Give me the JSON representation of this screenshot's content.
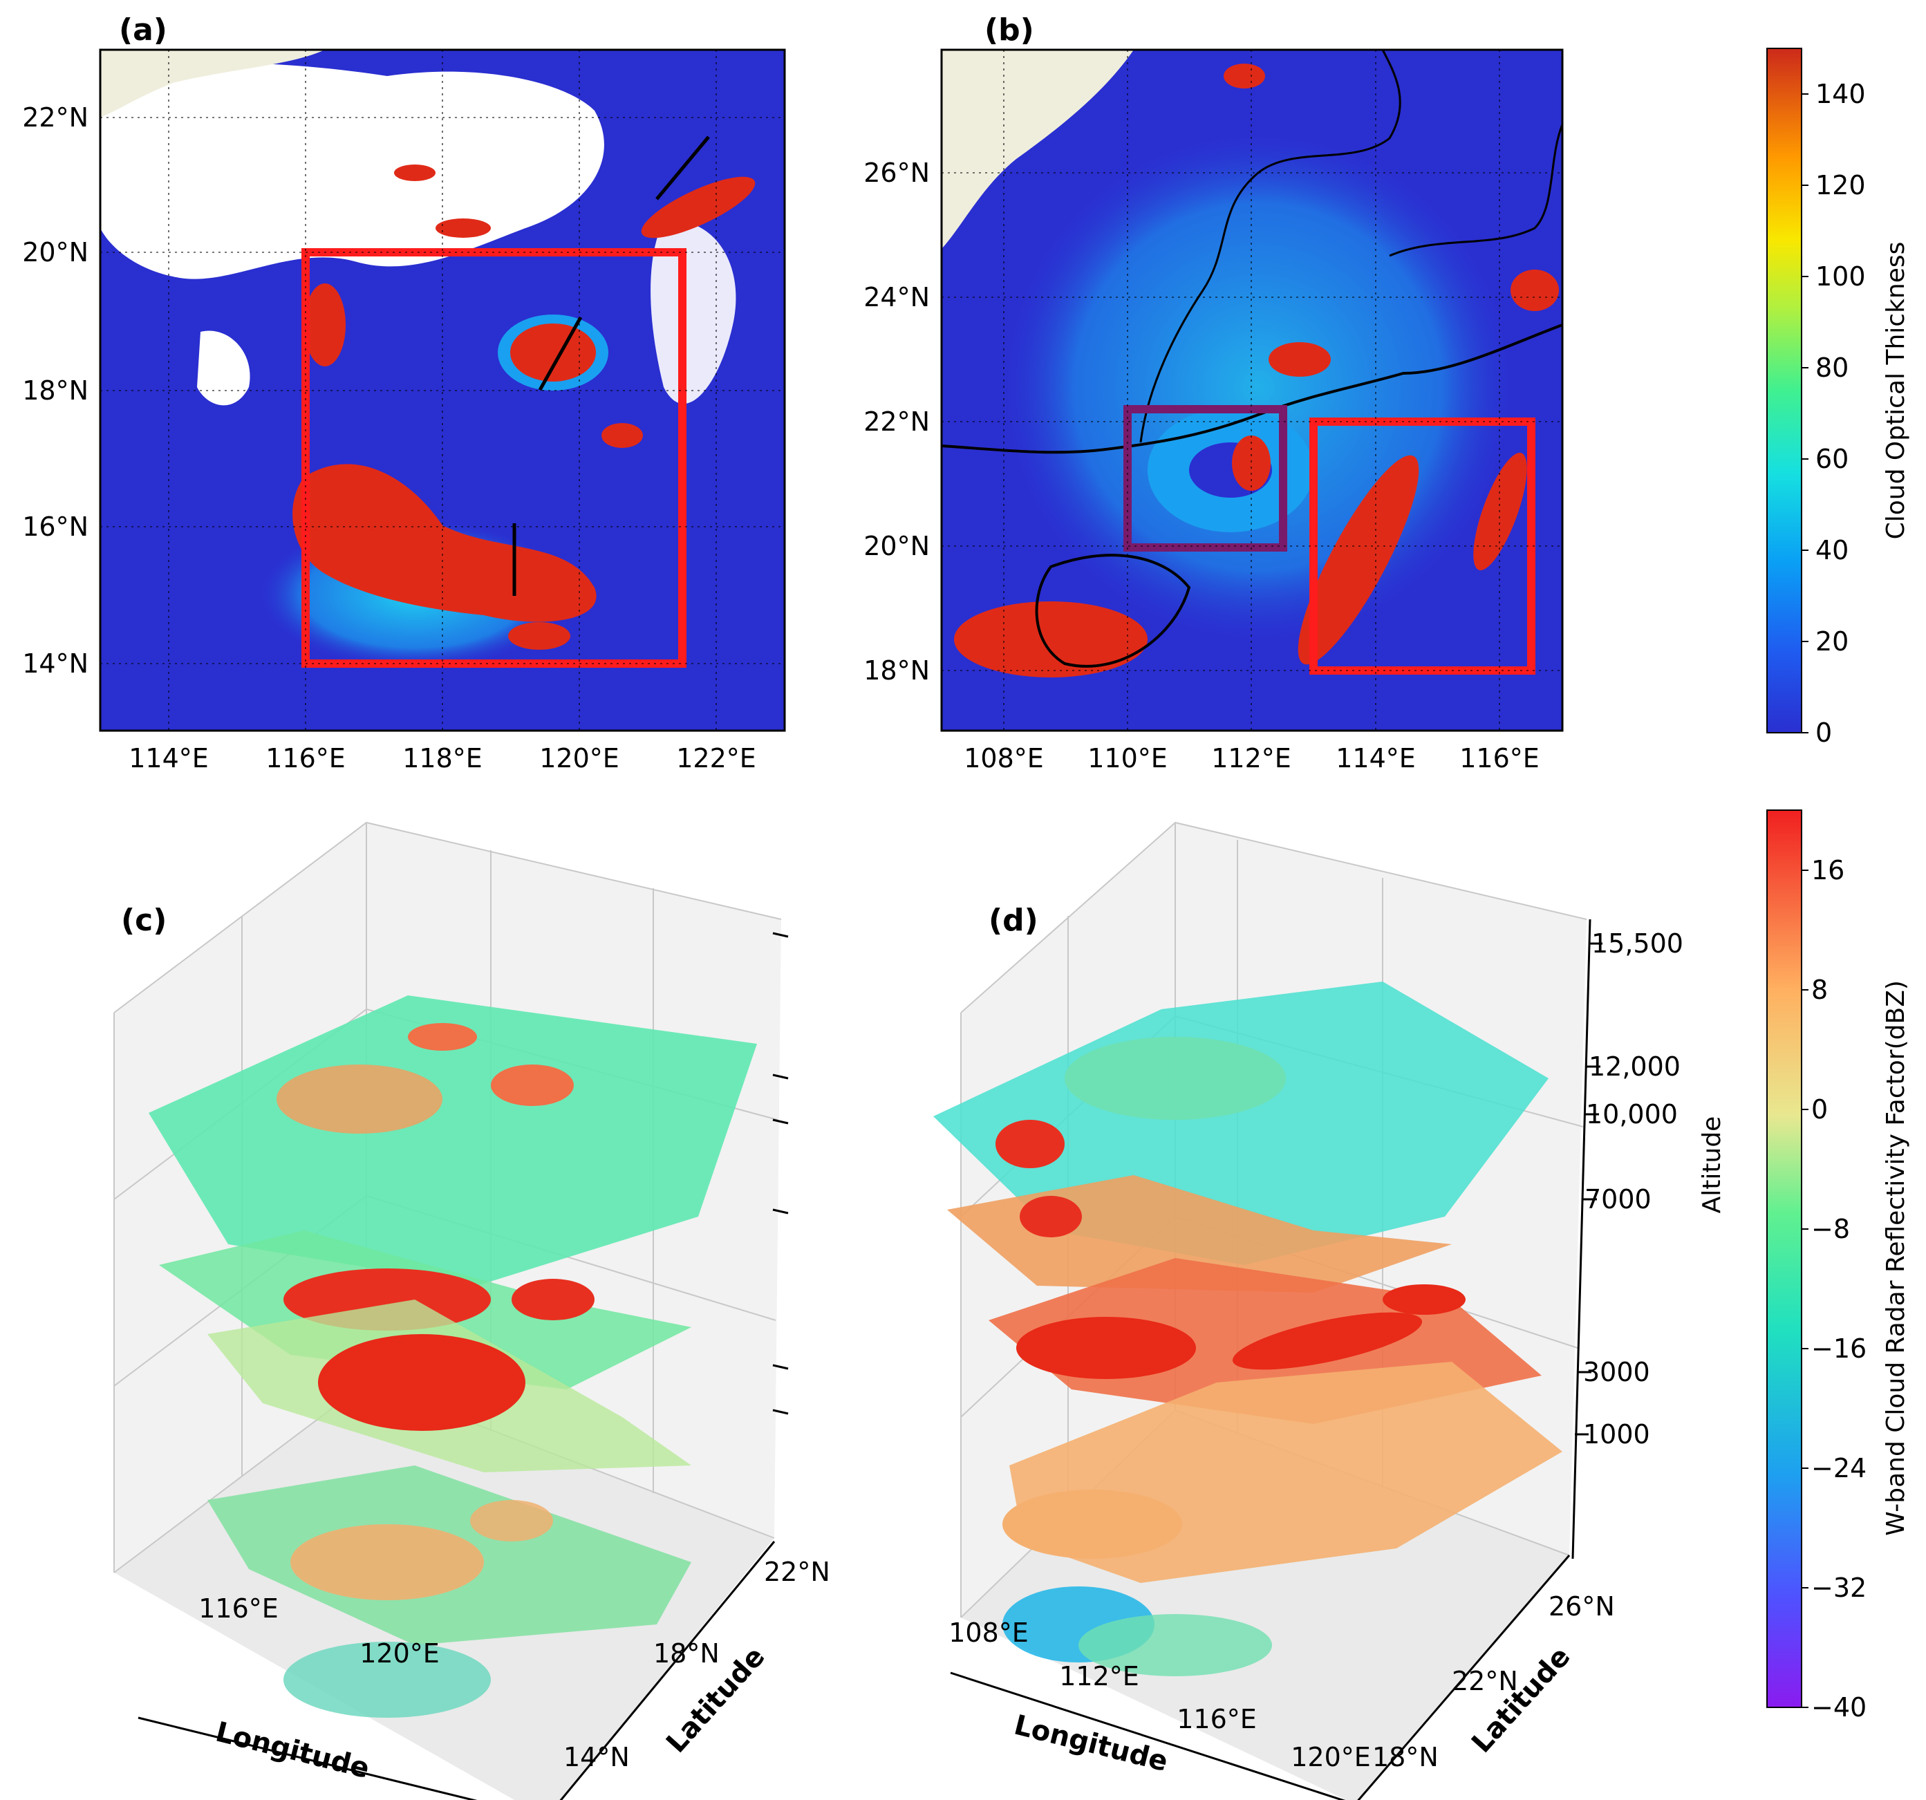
{
  "panels": {
    "a": {
      "label": "(a)",
      "x_ticks": [
        "114°E",
        "116°E",
        "118°E",
        "120°E",
        "122°E"
      ],
      "y_ticks": [
        "22°N",
        "20°N",
        "18°N",
        "16°N",
        "14°N"
      ]
    },
    "b": {
      "label": "(b)",
      "x_ticks": [
        "108°E",
        "110°E",
        "112°E",
        "114°E",
        "116°E"
      ],
      "y_ticks": [
        "26°N",
        "24°N",
        "22°N",
        "20°N",
        "18°N"
      ]
    },
    "c": {
      "label": "(c)",
      "lon_ticks": [
        "116°E",
        "120°E"
      ],
      "lat_ticks": [
        "22°N",
        "18°N",
        "14°N"
      ],
      "xlabel": "Longitude",
      "ylabel": "Latitude"
    },
    "d": {
      "label": "(d)",
      "lon_ticks": [
        "108°E",
        "112°E",
        "116°E",
        "120°E"
      ],
      "lat_ticks": [
        "26°N",
        "22°N",
        "18°N"
      ],
      "alt_ticks": [
        "15,500",
        "12,000",
        "10,000",
        "7000",
        "3000",
        "1000"
      ],
      "xlabel": "Longitude",
      "ylabel": "Latitude",
      "zlabel": "Altitude"
    }
  },
  "colorbars": {
    "cot": {
      "label": "Cloud Optical Thickness",
      "ticks": [
        "0",
        "20",
        "40",
        "60",
        "80",
        "100",
        "120",
        "140"
      ]
    },
    "dbz": {
      "label": "W-band Cloud Radar Reflectivity Factor(dBZ)",
      "ticks": [
        "−40",
        "−32",
        "−24",
        "−16",
        "−8",
        "0",
        "8",
        "16"
      ]
    }
  },
  "colors": {
    "ocean_blue": "#2a2fd0",
    "cloud_red": "#dd2a1a",
    "box_red": "#ff1c1c",
    "box_purple": "#7a1a6a",
    "land": "#efeedd"
  },
  "chart_data": [
    {
      "type": "heatmap",
      "panel": "a",
      "title": "(a)",
      "variable": "Cloud Optical Thickness",
      "xlim": [
        113,
        123
      ],
      "ylim": [
        13,
        23
      ],
      "x_ticks": [
        114,
        116,
        118,
        120,
        122
      ],
      "y_ticks": [
        14,
        16,
        18,
        20,
        22
      ],
      "highlight_boxes": [
        {
          "color": "red",
          "lon": [
            116,
            121.5
          ],
          "lat": [
            14,
            20
          ]
        }
      ],
      "track_lines": [
        {
          "lon": [
            119.4,
            120.1
          ],
          "lat": [
            18,
            19.1
          ]
        },
        {
          "lon": [
            119.05,
            119.05
          ],
          "lat": [
            15.05,
            16.1
          ]
        },
        {
          "lon": [
            121.1,
            121.9
          ],
          "lat": [
            20.7,
            21.6
          ]
        }
      ]
    },
    {
      "type": "heatmap",
      "panel": "b",
      "title": "(b)",
      "variable": "Cloud Optical Thickness",
      "xlim": [
        107,
        117.3
      ],
      "ylim": [
        17,
        28
      ],
      "x_ticks": [
        108,
        110,
        112,
        114,
        116
      ],
      "y_ticks": [
        18,
        20,
        22,
        24,
        26
      ],
      "highlight_boxes": [
        {
          "color": "purple",
          "lon": [
            110,
            112.5
          ],
          "lat": [
            20,
            22.2
          ]
        },
        {
          "color": "red",
          "lon": [
            113,
            116.5
          ],
          "lat": [
            18,
            22
          ]
        }
      ]
    },
    {
      "type": "3d-layers",
      "panel": "c",
      "title": "(c)",
      "variable": "W-band Cloud Radar Reflectivity Factor(dBZ)",
      "lon_ticks": [
        116,
        120
      ],
      "lat_ticks": [
        14,
        18,
        22
      ],
      "layers": 4
    },
    {
      "type": "3d-layers",
      "panel": "d",
      "title": "(d)",
      "variable": "W-band Cloud Radar Reflectivity Factor(dBZ)",
      "lon_ticks": [
        108,
        112,
        116,
        120
      ],
      "lat_ticks": [
        18,
        22,
        26
      ],
      "altitude_ticks": [
        1000,
        3000,
        7000,
        10000,
        12000,
        15500
      ],
      "layers": 4
    },
    {
      "type": "colorbar",
      "label": "Cloud Optical Thickness",
      "range": [
        0,
        150
      ],
      "ticks": [
        0,
        20,
        40,
        60,
        80,
        100,
        120,
        140
      ]
    },
    {
      "type": "colorbar",
      "label": "W-band Cloud Radar Reflectivity Factor(dBZ)",
      "range": [
        -40,
        20
      ],
      "ticks": [
        -40,
        -32,
        -24,
        -16,
        -8,
        0,
        8,
        16
      ]
    }
  ]
}
